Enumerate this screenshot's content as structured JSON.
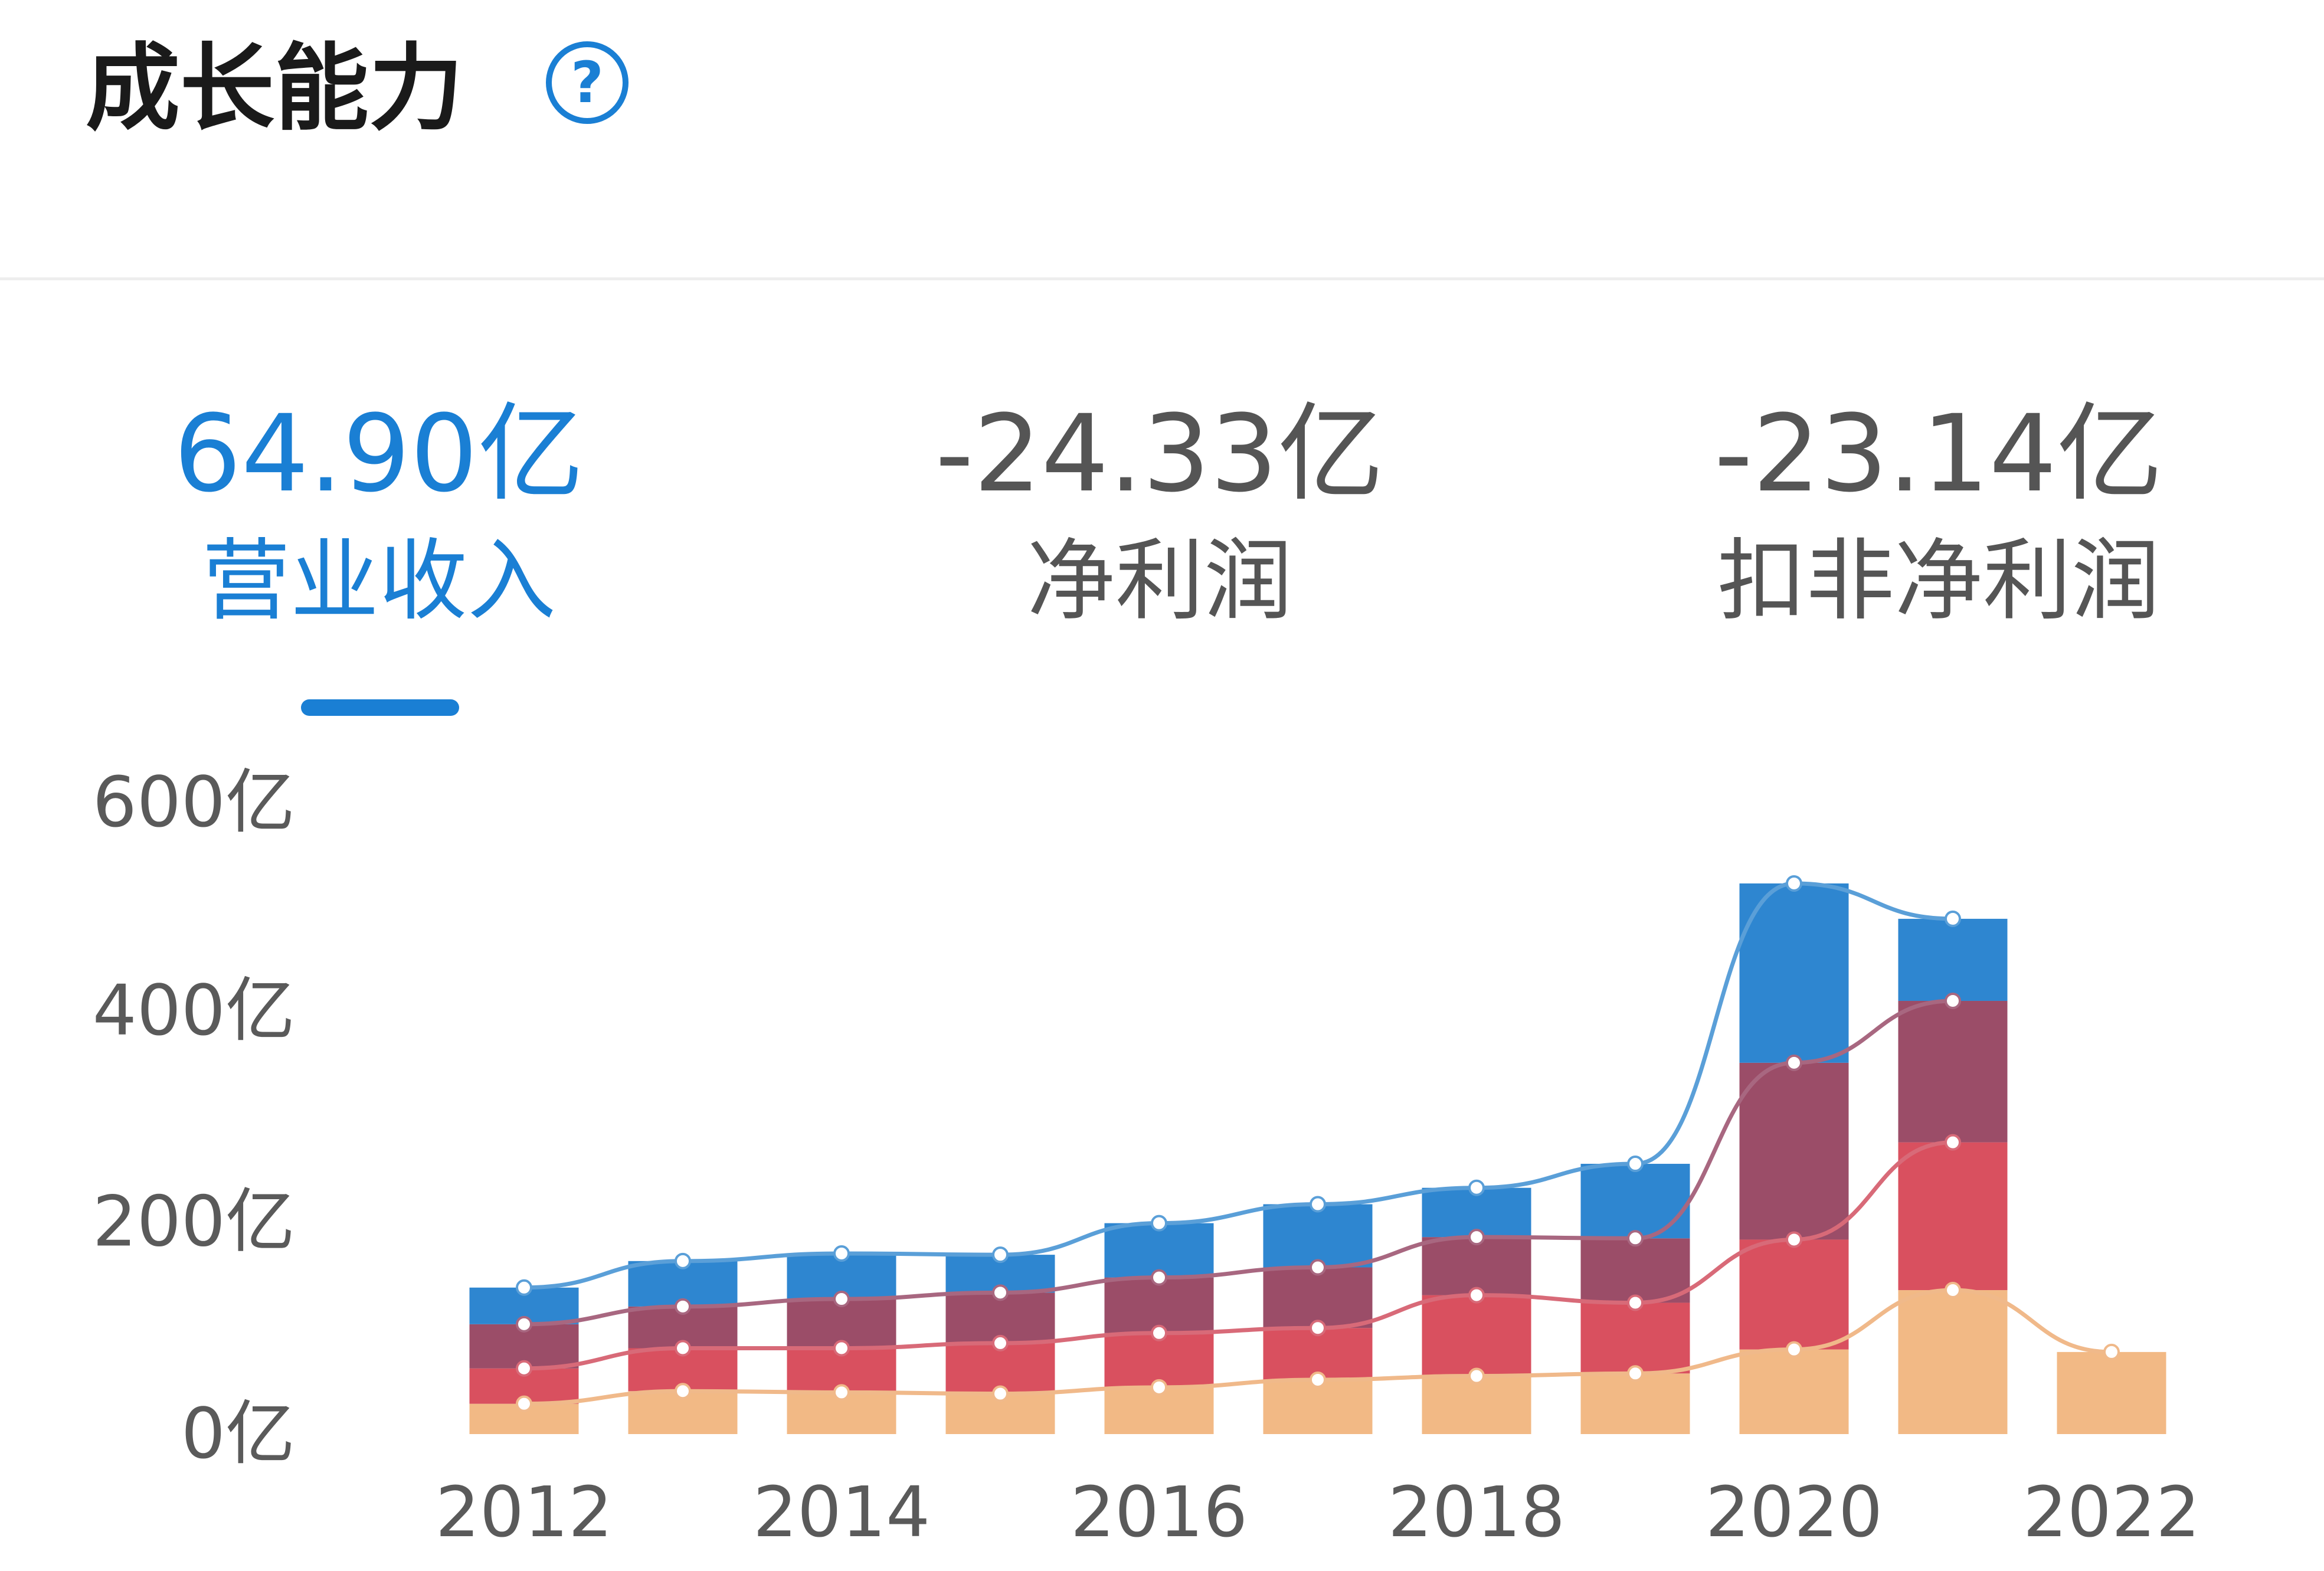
{
  "header": {
    "title": "成长能力",
    "help_icon": "question-circle-icon"
  },
  "tabs": [
    {
      "value": "64.90亿",
      "label": "营业收入",
      "active": true
    },
    {
      "value": "-24.33亿",
      "label": "净利润",
      "active": false
    },
    {
      "value": "-23.14亿",
      "label": "扣非净利润",
      "active": false
    }
  ],
  "colors": {
    "accent": "#1a7fd4",
    "seg1": "#f2b985",
    "seg2": "#d9505f",
    "seg3": "#9b4d68",
    "seg4": "#2e86d0"
  },
  "chart_data": {
    "type": "bar",
    "stacked": true,
    "categories": [
      2012,
      2013,
      2014,
      2015,
      2016,
      2017,
      2018,
      2019,
      2020,
      2021,
      2022
    ],
    "x_tick_labels": [
      "2012",
      "2014",
      "2016",
      "2018",
      "2020",
      "2022"
    ],
    "y_tick_labels": [
      "600亿",
      "400亿",
      "200亿",
      "0亿"
    ],
    "y_ticks": [
      500,
      335,
      168,
      0
    ],
    "ylim": [
      0,
      500
    ],
    "series": [
      {
        "values": [
          24,
          34,
          33,
          32,
          37,
          43,
          46,
          48,
          67,
          114,
          65
        ]
      },
      {
        "values": [
          28,
          34,
          35,
          40,
          43,
          41,
          64,
          56,
          87,
          117,
          0
        ]
      },
      {
        "values": [
          35,
          33,
          39,
          40,
          44,
          48,
          46,
          51,
          140,
          112,
          0
        ]
      },
      {
        "values": [
          29,
          36,
          36,
          30,
          43,
          50,
          39,
          59,
          142,
          65,
          0
        ]
      }
    ],
    "line_overlay": true,
    "grid": false,
    "legend": "none"
  }
}
